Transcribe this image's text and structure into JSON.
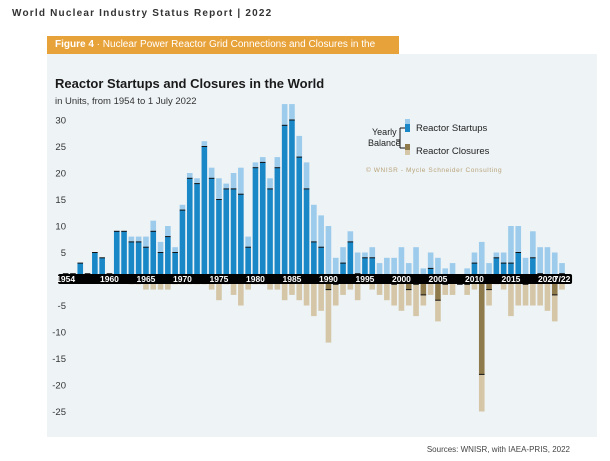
{
  "header": {
    "report_title": "World Nuclear Industry Status Report | 2022"
  },
  "figure": {
    "number": "Figure 4",
    "separator": " · ",
    "caption": "Nuclear Power Reactor Grid Connections and Closures in the World"
  },
  "chart_data": {
    "type": "bar",
    "title": "Reactor Startups and Closures in the World",
    "subtitle": "in Units, from 1954 to 1 July 2022",
    "years": [
      1954,
      1955,
      1956,
      1957,
      1958,
      1959,
      1960,
      1961,
      1962,
      1963,
      1964,
      1965,
      1966,
      1967,
      1968,
      1969,
      1970,
      1971,
      1972,
      1973,
      1974,
      1975,
      1976,
      1977,
      1978,
      1979,
      1980,
      1981,
      1982,
      1983,
      1984,
      1985,
      1986,
      1987,
      1988,
      1989,
      1990,
      1991,
      1992,
      1993,
      1994,
      1995,
      1996,
      1997,
      1998,
      1999,
      2000,
      2001,
      2002,
      2003,
      2004,
      2005,
      2006,
      2007,
      2008,
      2009,
      2010,
      2011,
      2012,
      2013,
      2014,
      2015,
      2016,
      2017,
      2018,
      2019,
      2020,
      2021,
      2022
    ],
    "x_tick_labels": [
      "1954",
      "1960",
      "1965",
      "1970",
      "1975",
      "1980",
      "1985",
      "1990",
      "1995",
      "2000",
      "2005",
      "2010",
      "2015",
      "2020",
      "7/22"
    ],
    "series": [
      {
        "name": "Reactor Startups",
        "color": "#4a9fd8",
        "values": [
          1,
          1,
          3,
          1,
          5,
          4,
          1,
          9,
          9,
          8,
          8,
          8,
          11,
          7,
          10,
          6,
          14,
          20,
          19,
          26,
          21,
          19,
          18,
          20,
          21,
          8,
          22,
          23,
          19,
          23,
          33,
          33,
          27,
          22,
          14,
          12,
          10,
          4,
          6,
          9,
          5,
          5,
          6,
          3,
          4,
          4,
          6,
          3,
          6,
          2,
          5,
          4,
          2,
          3,
          0,
          2,
          5,
          7,
          3,
          5,
          5,
          10,
          10,
          4,
          9,
          6,
          6,
          5,
          3
        ]
      },
      {
        "name": "Reactor Closures",
        "color": "#b9a47a",
        "values": [
          0,
          0,
          0,
          0,
          0,
          0,
          0,
          0,
          0,
          1,
          1,
          2,
          2,
          2,
          2,
          1,
          1,
          1,
          1,
          1,
          2,
          4,
          1,
          3,
          5,
          2,
          1,
          1,
          2,
          2,
          4,
          3,
          4,
          5,
          7,
          6,
          12,
          5,
          3,
          2,
          4,
          1,
          2,
          3,
          4,
          5,
          6,
          5,
          7,
          5,
          3,
          8,
          3,
          3,
          1,
          3,
          2,
          25,
          5,
          1,
          2,
          7,
          5,
          5,
          5,
          5,
          6,
          8,
          2
        ]
      }
    ],
    "legend": {
      "balance_label_line1": "Yearly",
      "balance_label_line2": "Balance",
      "startups": "Reactor Startups",
      "closures": "Reactor Closures",
      "position": "top-right"
    },
    "y_ticks": [
      30,
      25,
      20,
      15,
      10,
      5,
      -5,
      -10,
      -15,
      -20,
      -25
    ],
    "ylim": [
      -26,
      34
    ],
    "watermark": "© WNISR - Mycle Schneider Consulting"
  },
  "source": "Sources: WNISR, with IAEA-PRIS, 2022",
  "colors": {
    "startup_dark": "#1a87c7",
    "startup_light": "#9ccbeb",
    "closure_dark": "#8f7a4c",
    "closure_light": "#d4c6a6",
    "banner": "#e8a23a",
    "panel": "#eef3f6",
    "axis": "#000000"
  }
}
